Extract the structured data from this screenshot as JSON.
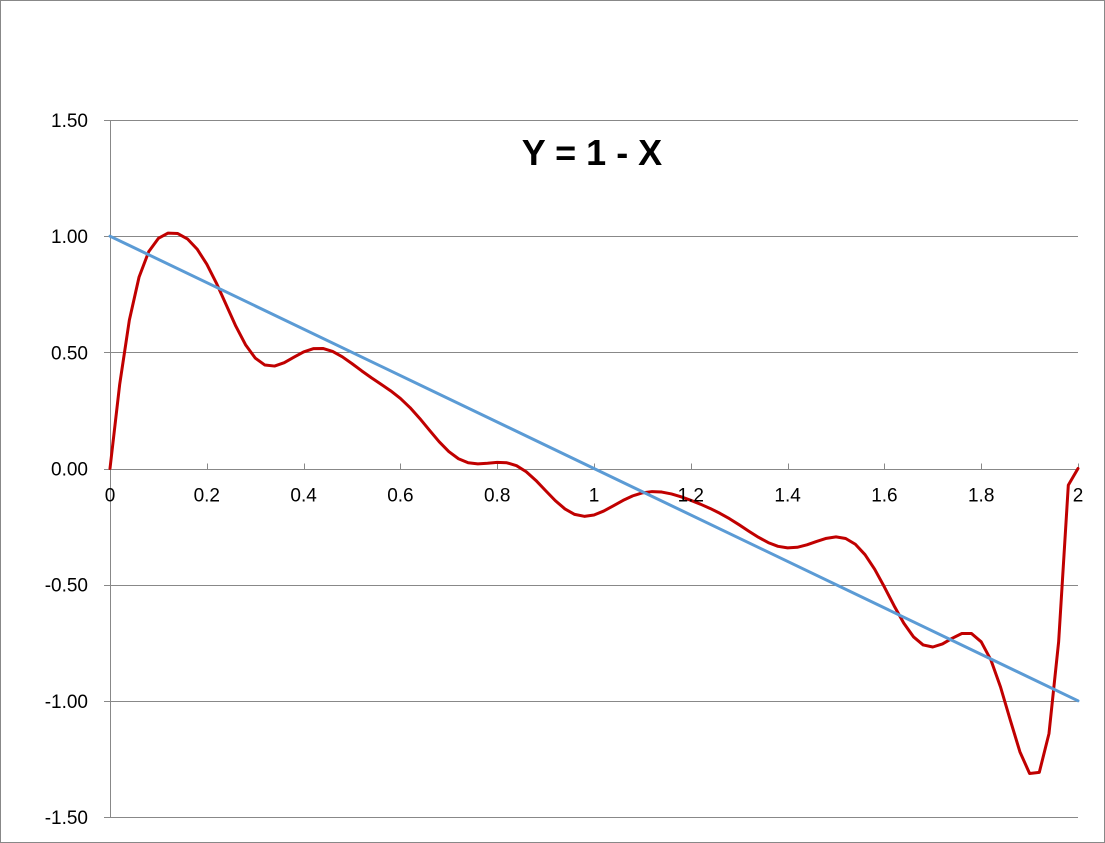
{
  "chart_data": {
    "type": "line",
    "title": "Y = 1 - X",
    "xlabel": "",
    "ylabel": "",
    "xlim": [
      0,
      2
    ],
    "ylim": [
      -1.5,
      1.5
    ],
    "x_ticks": [
      0,
      0.2,
      0.4,
      0.6,
      0.8,
      1,
      1.2,
      1.4,
      1.6,
      1.8,
      2
    ],
    "x_tick_labels": [
      "0",
      "0.2",
      "0.4",
      "0.6",
      "0.8",
      "1",
      "1.2",
      "1.4",
      "1.6",
      "1.8",
      "2"
    ],
    "y_ticks": [
      1.5,
      1.0,
      0.5,
      0.0,
      -0.5,
      -1.0,
      -1.5
    ],
    "y_tick_labels": [
      "1.50",
      "1.00",
      "0.50",
      "0.00",
      "-0.50",
      "-1.00",
      "-1.50"
    ],
    "grid": "horizontal",
    "legend": "none",
    "series": [
      {
        "color": "#C00000",
        "x": [
          0,
          0.02,
          0.04,
          0.06,
          0.08,
          0.1,
          0.12,
          0.14,
          0.16,
          0.18,
          0.2,
          0.22,
          0.24,
          0.26,
          0.28,
          0.3,
          0.32,
          0.34,
          0.36,
          0.38,
          0.4,
          0.42,
          0.44,
          0.46,
          0.48,
          0.5,
          0.52,
          0.54,
          0.56,
          0.58,
          0.6,
          0.62,
          0.64,
          0.66,
          0.68,
          0.7,
          0.72,
          0.74,
          0.76,
          0.78,
          0.8,
          0.82,
          0.84,
          0.86,
          0.88,
          0.9,
          0.92,
          0.94,
          0.96,
          0.98,
          1.0,
          1.02,
          1.04,
          1.06,
          1.08,
          1.1,
          1.12,
          1.14,
          1.16,
          1.18,
          1.2,
          1.22,
          1.24,
          1.26,
          1.28,
          1.3,
          1.32,
          1.34,
          1.36,
          1.38,
          1.4,
          1.42,
          1.44,
          1.46,
          1.48,
          1.5,
          1.52,
          1.54,
          1.56,
          1.58,
          1.6,
          1.62,
          1.64,
          1.66,
          1.68,
          1.7,
          1.72,
          1.74,
          1.76,
          1.78,
          1.8,
          1.82,
          1.84,
          1.86,
          1.88,
          1.9,
          1.92,
          1.94,
          1.96,
          1.98,
          2.0
        ],
        "y": [
          0,
          0.3619,
          0.6389,
          0.8237,
          0.9335,
          0.9906,
          1.0132,
          1.0113,
          0.9883,
          0.9443,
          0.8795,
          0.7972,
          0.7046,
          0.6124,
          0.5328,
          0.4755,
          0.4453,
          0.4409,
          0.4553,
          0.479,
          0.5019,
          0.5158,
          0.5166,
          0.504,
          0.4808,
          0.4514,
          0.4203,
          0.3906,
          0.3627,
          0.3342,
          0.3015,
          0.2619,
          0.2154,
          0.1648,
          0.1153,
          0.0729,
          0.042,
          0.0248,
          0.0198,
          0.0225,
          0.0264,
          0.0246,
          0.012,
          -0.0139,
          -0.0515,
          -0.0952,
          -0.1383,
          -0.1741,
          -0.1975,
          -0.2059,
          -0.2,
          -0.1832,
          -0.1605,
          -0.1373,
          -0.1178,
          -0.1047,
          -0.0993,
          -0.1013,
          -0.1095,
          -0.1219,
          -0.1369,
          -0.1536,
          -0.172,
          -0.1927,
          -0.2162,
          -0.2424,
          -0.2699,
          -0.2964,
          -0.319,
          -0.3349,
          -0.3417,
          -0.3391,
          -0.3286,
          -0.314,
          -0.3006,
          -0.2943,
          -0.3012,
          -0.3261,
          -0.3709,
          -0.434,
          -0.5101,
          -0.5907,
          -0.6656,
          -0.7244,
          -0.7594,
          -0.7683,
          -0.7553,
          -0.7308,
          -0.7102,
          -0.7104,
          -0.7459,
          -0.8239,
          -0.941,
          -1.0821,
          -1.2195,
          -1.3128,
          -1.3081,
          -1.1414,
          -0.7461,
          -0.0713,
          0
        ]
      },
      {
        "color": "#5B9BD5",
        "x": [
          0,
          2
        ],
        "y": [
          1,
          -1
        ]
      }
    ]
  }
}
